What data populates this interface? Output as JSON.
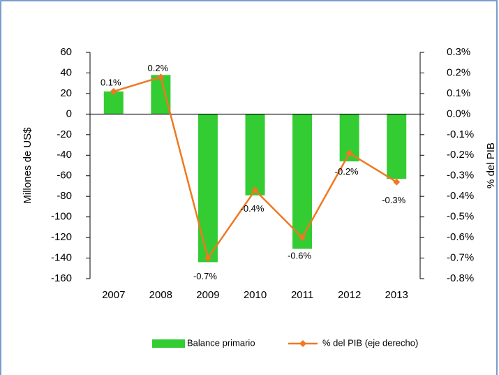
{
  "chart_data": {
    "type": "bar_line",
    "categories": [
      "2007",
      "2008",
      "2009",
      "2010",
      "2011",
      "2012",
      "2013"
    ],
    "series": [
      {
        "name": "Balance primario",
        "color": "#33cc33",
        "type": "bar",
        "values": [
          22,
          38,
          -144,
          -79,
          -131,
          -46,
          -63
        ]
      },
      {
        "name": "% del PIB (eje derecho)",
        "color": "#f07820",
        "type": "line",
        "axis": "y2",
        "values": [
          0.11,
          0.18,
          -0.7,
          -0.37,
          -0.6,
          -0.19,
          -0.33
        ],
        "value_labels": [
          "0.1%",
          "0.2%",
          "-0.7%",
          "-0.4%",
          "-0.6%",
          "-0.2%",
          "-0.3%"
        ]
      }
    ],
    "ylabel": "Millones de US$",
    "y2label": "% del PIB",
    "ylim": [
      -160,
      60
    ],
    "yticks": [
      60,
      40,
      20,
      0,
      -20,
      -40,
      -60,
      -80,
      -100,
      -120,
      -140,
      -160
    ],
    "y2lim": [
      -0.8,
      0.3
    ],
    "y2ticks": [
      {
        "value": 0.3,
        "label": "0.3%"
      },
      {
        "value": 0.2,
        "label": "0.2%"
      },
      {
        "value": 0.1,
        "label": "0.1%"
      },
      {
        "value": 0.0,
        "label": "0.0%"
      },
      {
        "value": -0.1,
        "label": "-0.1%"
      },
      {
        "value": -0.2,
        "label": "-0.2%"
      },
      {
        "value": -0.3,
        "label": "-0.3%"
      },
      {
        "value": -0.4,
        "label": "-0.4%"
      },
      {
        "value": -0.5,
        "label": "-0.5%"
      },
      {
        "value": -0.6,
        "label": "-0.6%"
      },
      {
        "value": -0.7,
        "label": "-0.7%"
      },
      {
        "value": -0.8,
        "label": "-0.8%"
      }
    ],
    "legend": "bottom"
  }
}
